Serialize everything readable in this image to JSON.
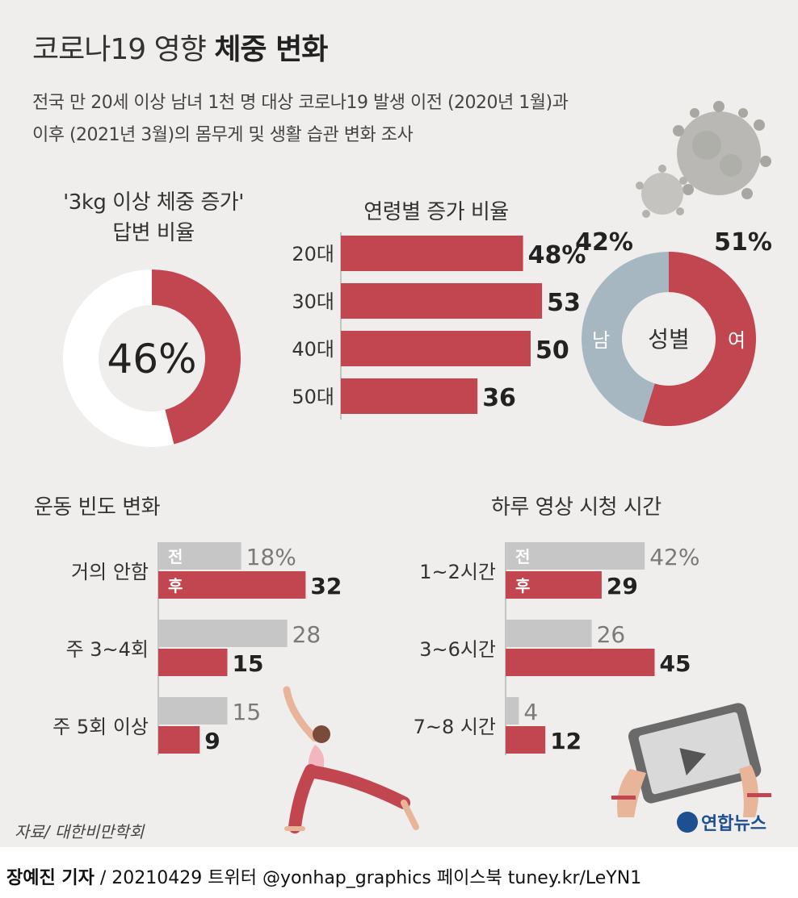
{
  "header": {
    "title_regular": "코로나19 영향",
    "title_bold": "체중 변화",
    "subtitle_line1": "전국 만 20세 이상 남녀 1천 명 대상 코로나19 발생 이전 (2020년 1월)과",
    "subtitle_line2": "이후 (2021년 3월)의 몸무게 및 생활 습관 변화 조사"
  },
  "colors": {
    "red": "#c24650",
    "blue_gray": "#a7b7c2",
    "gray": "#c6c6c6",
    "panel": "#efeeec"
  },
  "chart_data": [
    {
      "type": "pie",
      "title_line1": "'3kg 이상 체중 증가'",
      "title_line2": "답변 비율",
      "value": 46,
      "center_label": "46%"
    },
    {
      "type": "bar",
      "title": "연령별 증가 비율",
      "categories": [
        "20대",
        "30대",
        "40대",
        "50대"
      ],
      "values": [
        48,
        53,
        50,
        36
      ],
      "value_labels": [
        "48%",
        "53",
        "50",
        "36"
      ]
    },
    {
      "type": "pie",
      "center_label": "성별",
      "series": [
        {
          "name": "남",
          "value": 42,
          "label": "42%"
        },
        {
          "name": "여",
          "value": 51,
          "label": "51%"
        }
      ]
    },
    {
      "type": "bar",
      "title": "운동 빈도 변화",
      "categories": [
        "거의 안함",
        "주 3~4회",
        "주 5회 이상"
      ],
      "series": [
        {
          "name": "전",
          "values": [
            18,
            28,
            15
          ],
          "value_labels": [
            "18%",
            "28",
            "15"
          ]
        },
        {
          "name": "후",
          "values": [
            32,
            15,
            9
          ],
          "value_labels": [
            "32",
            "15",
            "9"
          ]
        }
      ]
    },
    {
      "type": "bar",
      "title": "하루 영상 시청 시간",
      "categories": [
        "1~2시간",
        "3~6시간",
        "7~8 시간"
      ],
      "series": [
        {
          "name": "전",
          "values": [
            42,
            26,
            4
          ],
          "value_labels": [
            "42%",
            "26",
            "4"
          ]
        },
        {
          "name": "후",
          "values": [
            29,
            45,
            12
          ],
          "value_labels": [
            "29",
            "45",
            "12"
          ]
        }
      ]
    }
  ],
  "source": "자료/ 대한비만학회",
  "logo": "연합뉴스",
  "footer": {
    "reporter": "장예진 기자",
    "details": " / 20210429 트위터 @yonhap_graphics  페이스북 tuney.kr/LeYN1"
  }
}
